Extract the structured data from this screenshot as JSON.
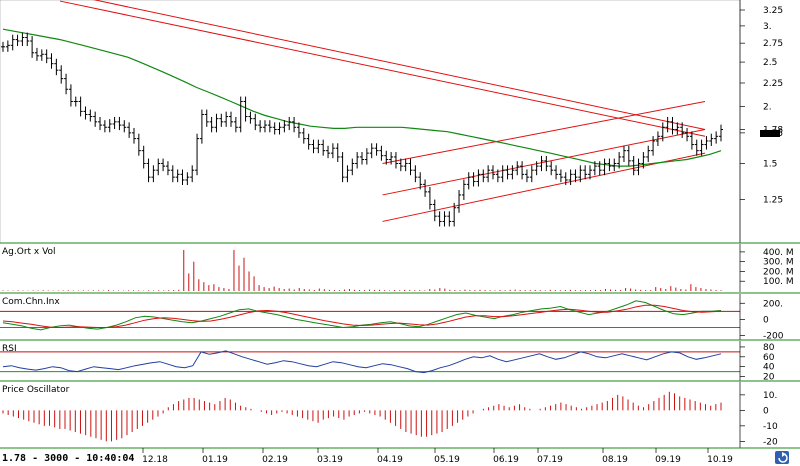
{
  "status_bar": {
    "readout": "1.78 - 3000 - 10:40:04"
  },
  "colors": {
    "price_bars": "#000000",
    "moving_average": "#118811",
    "trend_lines": "#e01010",
    "volume_bars": "#cc1111",
    "rsi_line": "#1f3fa0",
    "ref_lines_red": "#c01010",
    "ref_lines_green": "#1a9a1a",
    "osc_bars": "#cc1111",
    "last_price_marker": "#000000"
  },
  "chart_data": [
    {
      "type": "ohlc",
      "panel": "price",
      "y_axis_ticks": [
        "3.25",
        "3.",
        "2.75",
        "2.5",
        "2.25",
        "2.",
        "1.78",
        "1.75",
        "1.5",
        "1.25"
      ],
      "y_axis_scale": "log",
      "ylim": [
        1.02,
        3.35
      ],
      "x_axis_ticks": [
        "12.18",
        "01.19",
        "02.19",
        "03.19",
        "04.19",
        "05.19",
        "06.19",
        "07.19",
        "08.19",
        "09.19",
        "10.19"
      ],
      "last_price": 1.78,
      "close_series": [
        2.7,
        2.72,
        2.8,
        2.78,
        2.83,
        2.78,
        2.62,
        2.58,
        2.6,
        2.55,
        2.48,
        2.4,
        2.3,
        2.18,
        2.05,
        2.05,
        1.95,
        1.92,
        1.9,
        1.85,
        1.82,
        1.8,
        1.83,
        1.85,
        1.82,
        1.8,
        1.75,
        1.7,
        1.6,
        1.5,
        1.4,
        1.45,
        1.5,
        1.48,
        1.45,
        1.4,
        1.42,
        1.38,
        1.4,
        1.45,
        1.7,
        1.92,
        1.85,
        1.8,
        1.88,
        1.85,
        1.9,
        1.85,
        1.8,
        2.05,
        1.9,
        1.88,
        1.82,
        1.8,
        1.82,
        1.8,
        1.78,
        1.8,
        1.82,
        1.85,
        1.8,
        1.75,
        1.7,
        1.65,
        1.62,
        1.65,
        1.6,
        1.58,
        1.62,
        1.55,
        1.4,
        1.45,
        1.5,
        1.55,
        1.53,
        1.58,
        1.62,
        1.6,
        1.56,
        1.53,
        1.55,
        1.5,
        1.48,
        1.5,
        1.45,
        1.4,
        1.35,
        1.3,
        1.22,
        1.15,
        1.12,
        1.15,
        1.12,
        1.2,
        1.28,
        1.35,
        1.4,
        1.37,
        1.42,
        1.4,
        1.45,
        1.42,
        1.4,
        1.45,
        1.42,
        1.45,
        1.48,
        1.42,
        1.4,
        1.45,
        1.48,
        1.52,
        1.48,
        1.45,
        1.42,
        1.4,
        1.38,
        1.42,
        1.4,
        1.45,
        1.42,
        1.45,
        1.48,
        1.45,
        1.5,
        1.48,
        1.5,
        1.55,
        1.6,
        1.52,
        1.45,
        1.5,
        1.55,
        1.6,
        1.68,
        1.72,
        1.8,
        1.85,
        1.78,
        1.8,
        1.75,
        1.72,
        1.65,
        1.6,
        1.65,
        1.68,
        1.7,
        1.72,
        1.78
      ],
      "moving_average": [
        2.95,
        2.92,
        2.89,
        2.86,
        2.83,
        2.8,
        2.76,
        2.72,
        2.68,
        2.64,
        2.6,
        2.56,
        2.5,
        2.44,
        2.38,
        2.32,
        2.26,
        2.2,
        2.15,
        2.1,
        2.05,
        2.0,
        1.95,
        1.91,
        1.88,
        1.85,
        1.83,
        1.81,
        1.8,
        1.79,
        1.79,
        1.8,
        1.8,
        1.8,
        1.8,
        1.8,
        1.79,
        1.78,
        1.77,
        1.76,
        1.74,
        1.72,
        1.7,
        1.68,
        1.66,
        1.64,
        1.62,
        1.6,
        1.58,
        1.56,
        1.54,
        1.52,
        1.5,
        1.49,
        1.48,
        1.48,
        1.49,
        1.5,
        1.51,
        1.52,
        1.53,
        1.55,
        1.57,
        1.6
      ],
      "trend_lines": [
        {
          "from": [
            "11.18",
            3.55
          ],
          "to": [
            "10.19",
            1.78
          ]
        },
        {
          "from": [
            "11.18",
            3.4
          ],
          "to": [
            "10.19",
            1.72
          ]
        },
        {
          "from": [
            "05.19",
            1.5
          ],
          "to": [
            "10.19",
            2.05
          ]
        },
        {
          "from": [
            "05.19",
            1.28
          ],
          "to": [
            "10.19",
            1.78
          ]
        },
        {
          "from": [
            "05.19",
            1.12
          ],
          "to": [
            "10.19",
            1.58
          ]
        }
      ]
    },
    {
      "type": "bar",
      "panel": "volume",
      "title": "Ag.Ort x Vol",
      "y_axis_ticks": [
        "400. M",
        "300. M",
        "200. M",
        "100. M"
      ],
      "ylim": [
        0,
        450
      ],
      "unit": "M",
      "values": [
        6,
        5,
        4,
        7,
        5,
        4,
        6,
        5,
        8,
        6,
        4,
        5,
        6,
        7,
        5,
        4,
        6,
        5,
        7,
        6,
        5,
        8,
        6,
        5,
        4,
        6,
        7,
        5,
        4,
        6,
        5,
        7,
        6,
        8,
        10,
        12,
        420,
        180,
        300,
        120,
        90,
        60,
        70,
        40,
        30,
        20,
        420,
        260,
        340,
        200,
        150,
        60,
        40,
        30,
        45,
        30,
        20,
        25,
        15,
        30,
        20,
        15,
        10,
        25,
        18,
        12,
        10,
        8,
        15,
        20,
        12,
        10,
        8,
        14,
        10,
        12,
        8,
        6,
        10,
        8,
        12,
        10,
        7,
        9,
        6,
        20,
        15,
        30,
        25,
        12,
        10,
        8,
        14,
        10,
        9,
        12,
        10,
        8,
        6,
        10,
        8,
        12,
        14,
        10,
        8,
        9,
        11,
        8,
        6,
        12,
        9,
        8,
        10,
        12,
        9,
        7,
        10,
        8,
        11,
        9,
        20,
        15,
        12,
        10,
        30,
        25,
        15,
        12,
        10,
        9,
        40,
        30,
        20,
        50,
        35,
        20,
        15,
        70,
        40,
        30,
        20,
        15,
        10,
        8
      ]
    },
    {
      "type": "line",
      "panel": "cci",
      "title": "Com.Chn.Inx",
      "y_axis_ticks": [
        "200.",
        "0",
        "-200"
      ],
      "ylim": [
        -230,
        290
      ],
      "reference_lines": [
        100,
        -100
      ],
      "series": [
        {
          "color": "#118811",
          "values": [
            -40,
            -60,
            -80,
            -110,
            -130,
            -100,
            -80,
            -70,
            -90,
            -110,
            -120,
            -100,
            -70,
            -30,
            20,
            40,
            30,
            10,
            -10,
            -30,
            -40,
            -20,
            10,
            40,
            80,
            120,
            130,
            100,
            80,
            60,
            30,
            0,
            -20,
            -40,
            -60,
            -80,
            -100,
            -90,
            -70,
            -60,
            -40,
            -30,
            -50,
            -80,
            -90,
            -60,
            -20,
            20,
            60,
            80,
            50,
            30,
            10,
            40,
            60,
            90,
            110,
            130,
            140,
            160,
            120,
            90,
            60,
            80,
            100,
            140,
            180,
            230,
            210,
            160,
            110,
            70,
            60,
            80,
            100,
            100,
            110
          ]
        },
        {
          "color": "#dd1111",
          "values": [
            -20,
            -30,
            -45,
            -60,
            -80,
            -95,
            -100,
            -95,
            -90,
            -95,
            -100,
            -100,
            -90,
            -70,
            -40,
            -10,
            10,
            20,
            15,
            0,
            -15,
            -25,
            -20,
            0,
            25,
            55,
            85,
            105,
            110,
            100,
            85,
            60,
            35,
            10,
            -15,
            -35,
            -55,
            -70,
            -75,
            -70,
            -60,
            -50,
            -45,
            -55,
            -65,
            -70,
            -55,
            -30,
            0,
            30,
            45,
            45,
            35,
            35,
            45,
            60,
            75,
            90,
            105,
            120,
            125,
            115,
            100,
            90,
            90,
            105,
            125,
            155,
            175,
            175,
            160,
            135,
            110,
            95,
            90,
            95,
            100
          ]
        }
      ]
    },
    {
      "type": "line",
      "panel": "rsi",
      "title": "RSI",
      "y_axis_ticks": [
        "80",
        "60",
        "40",
        "20"
      ],
      "ylim": [
        15,
        90
      ],
      "reference_lines": [
        70,
        30
      ],
      "series": [
        {
          "color": "#1f3fa0",
          "values": [
            40,
            42,
            38,
            35,
            33,
            36,
            40,
            38,
            32,
            30,
            35,
            40,
            38,
            36,
            34,
            38,
            42,
            45,
            48,
            50,
            45,
            40,
            38,
            42,
            70,
            65,
            68,
            72,
            66,
            60,
            55,
            50,
            45,
            48,
            52,
            50,
            46,
            42,
            40,
            45,
            50,
            48,
            44,
            40,
            38,
            42,
            46,
            44,
            40,
            36,
            30,
            28,
            32,
            38,
            42,
            48,
            55,
            60,
            58,
            62,
            55,
            50,
            54,
            58,
            62,
            66,
            60,
            55,
            58,
            64,
            70,
            66,
            60,
            58,
            62,
            66,
            62,
            58,
            54,
            60,
            66,
            70,
            68,
            60,
            55,
            58,
            62,
            66
          ]
        }
      ]
    },
    {
      "type": "bar",
      "panel": "oscillator",
      "title": "Price Oscillator",
      "y_axis_ticks": [
        "10.",
        "0",
        "-10",
        "-20"
      ],
      "ylim": [
        -23,
        17
      ],
      "values": [
        -2,
        -3,
        -4,
        -5,
        -6,
        -7,
        -8,
        -9,
        -10,
        -10,
        -11,
        -12,
        -12,
        -13,
        -14,
        -15,
        -16,
        -17,
        -18,
        -19,
        -20,
        -20,
        -19,
        -18,
        -16,
        -14,
        -12,
        -10,
        -8,
        -6,
        -4,
        -2,
        2,
        4,
        6,
        7,
        8,
        8,
        7,
        6,
        5,
        4,
        6,
        8,
        7,
        5,
        3,
        2,
        1,
        0,
        -1,
        -2,
        -3,
        -2,
        -1,
        -2,
        -3,
        -4,
        -5,
        -6,
        -7,
        -8,
        -6,
        -5,
        -4,
        -5,
        -6,
        -4,
        -3,
        -2,
        -1,
        -2,
        -3,
        -4,
        -6,
        -8,
        -10,
        -12,
        -14,
        -15,
        -16,
        -17,
        -17,
        -16,
        -15,
        -14,
        -12,
        -10,
        -8,
        -6,
        -4,
        -2,
        0,
        1,
        2,
        3,
        4,
        3,
        2,
        3,
        4,
        2,
        1,
        0,
        1,
        2,
        3,
        4,
        5,
        4,
        3,
        2,
        1,
        2,
        3,
        4,
        5,
        6,
        8,
        10,
        9,
        7,
        5,
        3,
        2,
        4,
        6,
        8,
        10,
        12,
        11,
        9,
        8,
        7,
        6,
        5,
        4,
        3,
        4,
        5
      ]
    }
  ]
}
